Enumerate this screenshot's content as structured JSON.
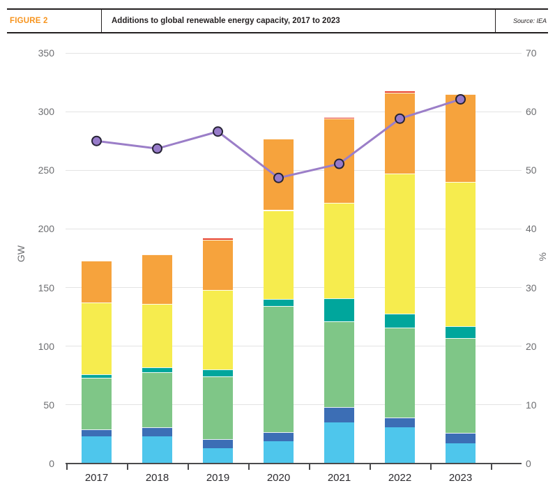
{
  "header": {
    "figure_label": "FIGURE 2",
    "title": "Additions to global renewable energy capacity, 2017 to 2023",
    "source": "Source: IEA"
  },
  "colors": {
    "accent_orange": "#f7941e",
    "axis_text": "#6d6e71",
    "axis_line": "#4a4a4c",
    "grid_line": "#e3e3e3",
    "line_purple": "#9b7ec8"
  },
  "chart_data": {
    "type": "bar",
    "subtype": "stacked-bars-with-line-overlay",
    "title": "Additions to global renewable energy capacity, 2017 to 2023",
    "source": "IEA",
    "categories": [
      "2017",
      "2018",
      "2019",
      "2020",
      "2021",
      "2022",
      "2023"
    ],
    "series": [
      {
        "name": "segment-light-blue",
        "color": "#4ec6ec",
        "values": [
          23,
          23,
          13,
          19,
          35,
          31,
          17
        ]
      },
      {
        "name": "segment-dark-blue",
        "color": "#3c6eb5",
        "values": [
          6,
          8,
          8,
          8,
          13,
          8,
          9
        ]
      },
      {
        "name": "segment-green",
        "color": "#7fc687",
        "values": [
          44,
          47,
          53,
          107,
          73,
          77,
          81
        ]
      },
      {
        "name": "segment-teal",
        "color": "#00a69c",
        "values": [
          3,
          4,
          6,
          6,
          20,
          12,
          10
        ]
      },
      {
        "name": "segment-yellow",
        "color": "#f6ec4e",
        "values": [
          61,
          54,
          68,
          76,
          81,
          119,
          123
        ]
      },
      {
        "name": "segment-orange",
        "color": "#f6a33d",
        "values": [
          36,
          42,
          43,
          61,
          72,
          69,
          75
        ]
      },
      {
        "name": "segment-red",
        "color": "#e8432c",
        "values": [
          0,
          0,
          1.5,
          0,
          1.5,
          2,
          0
        ]
      }
    ],
    "bar_totals_gw": [
      173,
      178,
      192.5,
      277,
      295.5,
      318,
      315
    ],
    "line_series": {
      "name": "share-line-right-axis",
      "color": "#9b7ec8",
      "marker_fill": "#977bc9",
      "marker_stroke": "#262335",
      "values_pct": [
        55.0,
        53.7,
        56.6,
        48.7,
        51.1,
        58.8,
        62.1
      ]
    },
    "left_axis": {
      "label": "GW",
      "min": 0,
      "max": 350,
      "step": 50,
      "tick_labels": [
        "0",
        "50",
        "100",
        "150",
        "200",
        "250",
        "300",
        "350"
      ]
    },
    "right_axis": {
      "label": "%",
      "min": 0,
      "max": 70,
      "step": 10,
      "tick_labels": [
        "0",
        "10",
        "20",
        "30",
        "40",
        "50",
        "60",
        "70"
      ]
    },
    "grid": true,
    "legend": false
  }
}
